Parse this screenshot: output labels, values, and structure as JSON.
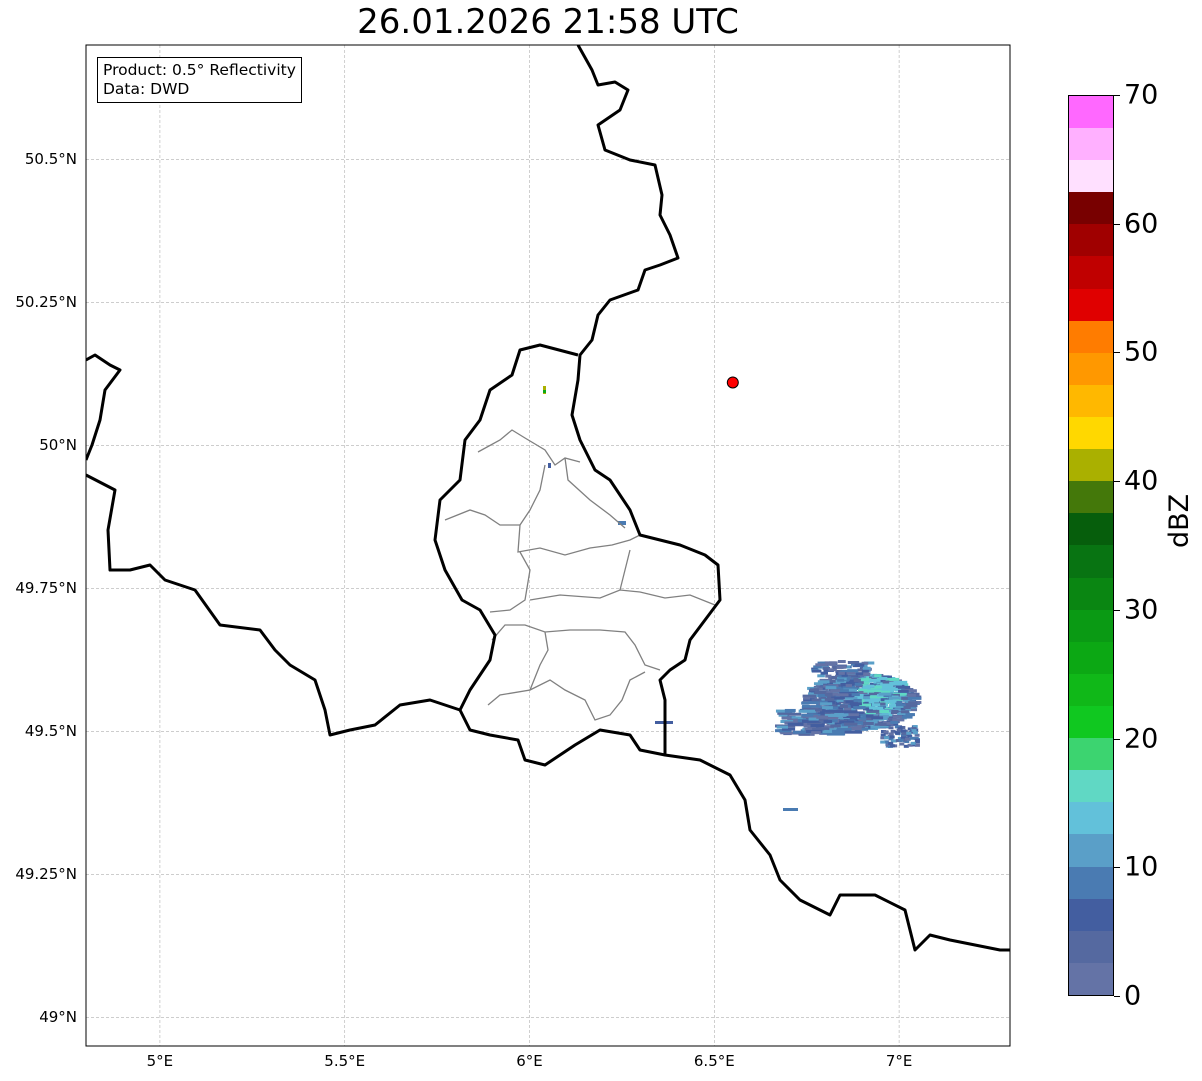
{
  "title": "26.01.2026 21:58 UTC",
  "legend": {
    "product": "Product: 0.5° Reflectivity",
    "data": "Data: DWD"
  },
  "axes": {
    "lon_range": [
      4.8,
      7.3
    ],
    "lat_range": [
      48.95,
      50.7
    ],
    "x_ticks": [
      {
        "value": 5.0,
        "label": "5°E"
      },
      {
        "value": 5.5,
        "label": "5.5°E"
      },
      {
        "value": 6.0,
        "label": "6°E"
      },
      {
        "value": 6.5,
        "label": "6.5°E"
      },
      {
        "value": 7.0,
        "label": "7°E"
      }
    ],
    "y_ticks": [
      {
        "value": 49.0,
        "label": "49°N"
      },
      {
        "value": 49.25,
        "label": "49.25°N"
      },
      {
        "value": 49.5,
        "label": "49.5°N"
      },
      {
        "value": 49.75,
        "label": "49.75°N"
      },
      {
        "value": 50.0,
        "label": "50°N"
      },
      {
        "value": 50.25,
        "label": "50.25°N"
      },
      {
        "value": 50.5,
        "label": "50.5°N"
      }
    ]
  },
  "radar_site": {
    "lon": 6.55,
    "lat": 50.11,
    "color": "#ff0000"
  },
  "colorbar": {
    "label": "dBZ",
    "min": 0,
    "max": 70,
    "step": 2.5,
    "ticks": [
      {
        "value": 0,
        "label": "0"
      },
      {
        "value": 10,
        "label": "10"
      },
      {
        "value": 20,
        "label": "20"
      },
      {
        "value": 30,
        "label": "30"
      },
      {
        "value": 40,
        "label": "40"
      },
      {
        "value": 50,
        "label": "50"
      },
      {
        "value": 60,
        "label": "60"
      },
      {
        "value": 70,
        "label": "70"
      }
    ],
    "colors": [
      "#6473a6",
      "#5569a0",
      "#435ea0",
      "#4a7bb2",
      "#5a9fc8",
      "#62c1da",
      "#60d8c4",
      "#3cd470",
      "#10c820",
      "#10b818",
      "#0ca814",
      "#0a9a14",
      "#0a8612",
      "#087412",
      "#065e0c",
      "#44780a",
      "#aab000",
      "#ffd800",
      "#ffb800",
      "#ff9800",
      "#ff7c00",
      "#e00000",
      "#c00000",
      "#a00000",
      "#780000",
      "#ffe0ff",
      "#ffb0ff",
      "#ff68ff",
      "#e838f0"
    ]
  }
}
